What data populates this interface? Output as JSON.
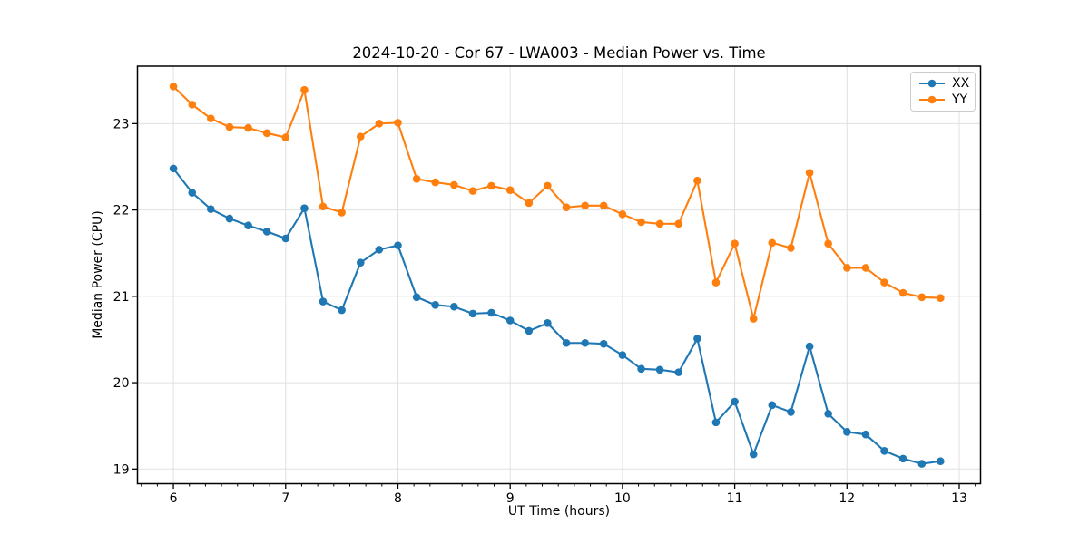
{
  "title": "2024-10-20 - Cor 67 - LWA003 - Median Power vs. Time",
  "xlabel": "UT Time (hours)",
  "ylabel": "Median Power (CPU)",
  "legend": {
    "items": [
      {
        "label": "XX",
        "color": "#1f77b4"
      },
      {
        "label": "YY",
        "color": "#ff7f0e"
      }
    ]
  },
  "colors": {
    "series_xx": "#1f77b4",
    "series_yy": "#ff7f0e",
    "grid": "#e0e0e0",
    "spine": "#000000",
    "text": "#000000"
  },
  "chart_data": {
    "type": "line",
    "title": "2024-10-20 - Cor 67 - LWA003 - Median Power vs. Time",
    "xlabel": "UT Time (hours)",
    "ylabel": "Median Power (CPU)",
    "marker": "o",
    "grid": true,
    "legend_position": "upper right",
    "xlim": [
      5.68,
      13.19
    ],
    "ylim": [
      18.83,
      23.665
    ],
    "x_ticks": [
      6,
      7,
      8,
      9,
      10,
      11,
      12,
      13
    ],
    "y_ticks": [
      19,
      20,
      21,
      22,
      23
    ],
    "x_minor_subdivisions": 7,
    "x": [
      6.0,
      6.167,
      6.333,
      6.5,
      6.667,
      6.833,
      7.0,
      7.167,
      7.333,
      7.5,
      7.667,
      7.833,
      8.0,
      8.167,
      8.333,
      8.5,
      8.667,
      8.833,
      9.0,
      9.167,
      9.333,
      9.5,
      9.667,
      9.833,
      10.0,
      10.167,
      10.333,
      10.5,
      10.667,
      10.833,
      11.0,
      11.167,
      11.333,
      11.5,
      11.667,
      11.833,
      12.0,
      12.167,
      12.333,
      12.5,
      12.667,
      12.833
    ],
    "series": [
      {
        "name": "XX",
        "color": "#1f77b4",
        "values": [
          22.48,
          22.2,
          22.01,
          21.9,
          21.82,
          21.75,
          21.67,
          22.02,
          20.94,
          20.84,
          21.39,
          21.54,
          21.59,
          20.99,
          20.9,
          20.88,
          20.8,
          20.81,
          20.72,
          20.6,
          20.69,
          20.46,
          20.46,
          20.45,
          20.32,
          20.16,
          20.15,
          20.12,
          20.51,
          19.54,
          19.78,
          19.17,
          19.74,
          19.66,
          20.42,
          19.64,
          19.43,
          19.4,
          19.21,
          19.12,
          19.06,
          19.09
        ]
      },
      {
        "name": "YY",
        "color": "#ff7f0e",
        "values": [
          23.43,
          23.22,
          23.06,
          22.96,
          22.95,
          22.89,
          22.84,
          23.39,
          22.04,
          21.97,
          22.85,
          23.0,
          23.01,
          22.36,
          22.32,
          22.29,
          22.22,
          22.28,
          22.23,
          22.08,
          22.28,
          22.03,
          22.05,
          22.05,
          21.95,
          21.86,
          21.84,
          21.84,
          22.34,
          21.16,
          21.61,
          20.74,
          21.62,
          21.56,
          22.43,
          21.61,
          21.33,
          21.33,
          21.16,
          21.04,
          20.99,
          20.98
        ]
      }
    ]
  }
}
